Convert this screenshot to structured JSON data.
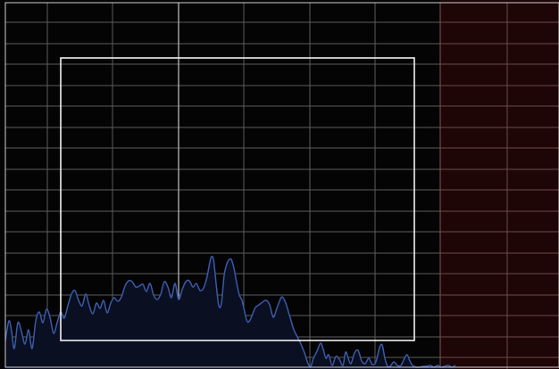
{
  "spectrum_view": {
    "background_color": "#040404",
    "grid_color": "#5c5c5c",
    "grid_major_color": "#b8b8b8",
    "border_color": "#cfcfcf",
    "excluded_region": {
      "fill_color": "#1e0506",
      "grid_color": "#6e4a4c",
      "label": ""
    },
    "selection_box": {
      "stroke_color": "#f2f2f2",
      "label": ""
    },
    "trace": {
      "line_color": "#3a5aa8",
      "fill_color": "#0a0f22",
      "label": ""
    }
  }
}
